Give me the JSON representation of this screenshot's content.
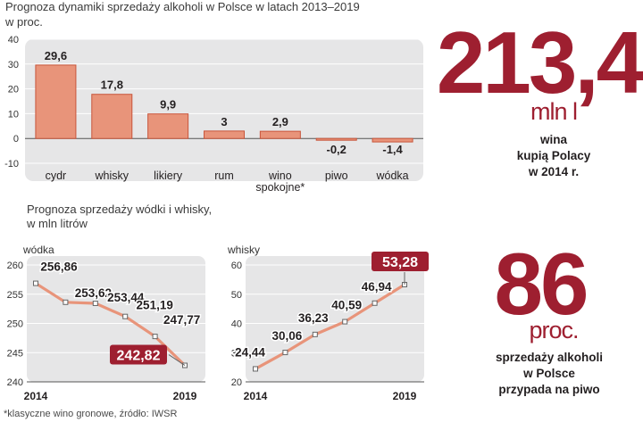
{
  "chart_data": [
    {
      "type": "bar",
      "title": "Prognoza dynamiki sprzedaży alkoholi w Polsce w latach 2013–2019",
      "ylabel": "w proc.",
      "categories": [
        "cydr",
        "whisky",
        "likiery",
        "rum",
        "wino spokojne*",
        "piwo",
        "wódka"
      ],
      "category_lines": [
        [
          "cydr"
        ],
        [
          "whisky"
        ],
        [
          "likiery"
        ],
        [
          "rum"
        ],
        [
          "wino",
          "spokojne*"
        ],
        [
          "piwo"
        ],
        [
          "wódka"
        ]
      ],
      "values": [
        29.6,
        17.8,
        9.9,
        3,
        2.9,
        -0.2,
        -1.4
      ],
      "value_labels": [
        "29,6",
        "17,8",
        "9,9",
        "3",
        "2,9",
        "-0,2",
        "-1,4"
      ],
      "ylim": [
        -10,
        40
      ],
      "yticks": [
        40,
        30,
        20,
        10,
        0,
        -10
      ],
      "grid": true
    },
    {
      "type": "line",
      "title": "Prognoza sprzedaży wódki i whisky, w mln litrów",
      "title_lines": [
        "Prognoza sprzedaży wódki i whisky,",
        "w mln litrów"
      ],
      "series_name": "wódka",
      "x": [
        2014,
        2015,
        2016,
        2017,
        2018,
        2019
      ],
      "values": [
        256.86,
        253.62,
        253.44,
        251.19,
        247.77,
        242.82
      ],
      "value_labels": [
        "256,86",
        "253,62",
        "253,44",
        "251,19",
        "247,77",
        "242,82"
      ],
      "ylim": [
        240,
        260
      ],
      "yticks": [
        260,
        255,
        250,
        245,
        240
      ],
      "xtick_labels": [
        "2014",
        "2019"
      ],
      "highlight_last": true
    },
    {
      "type": "line",
      "series_name": "whisky",
      "x": [
        2014,
        2015,
        2016,
        2017,
        2018,
        2019
      ],
      "values": [
        24.44,
        30.06,
        36.23,
        40.59,
        46.94,
        53.28
      ],
      "value_labels": [
        "24,44",
        "30,06",
        "36,23",
        "40,59",
        "46,94",
        "53,28"
      ],
      "ylim": [
        20,
        60
      ],
      "yticks": [
        60,
        50,
        40,
        30,
        20
      ],
      "xtick_labels": [
        "2014",
        "2019"
      ],
      "highlight_last": true
    }
  ],
  "facts": {
    "wine_value": "213,4",
    "wine_unit": "mln l",
    "wine_text": [
      "wina",
      "kupią Polacy",
      "w 2014  r."
    ],
    "beer_value": "86",
    "beer_unit": "proc.",
    "beer_text": [
      "sprzedaży alkoholi",
      "w Polsce",
      "przypada na piwo"
    ]
  },
  "footnote": "*klasyczne wino gronowe, źródło: IWSR",
  "colors": {
    "panel": "#e6e6e7",
    "bar": "#e8947a",
    "bar_edge": "#c8553b",
    "line": "#e8947a",
    "accent": "#9e1f30",
    "grid": "#ffffff"
  }
}
